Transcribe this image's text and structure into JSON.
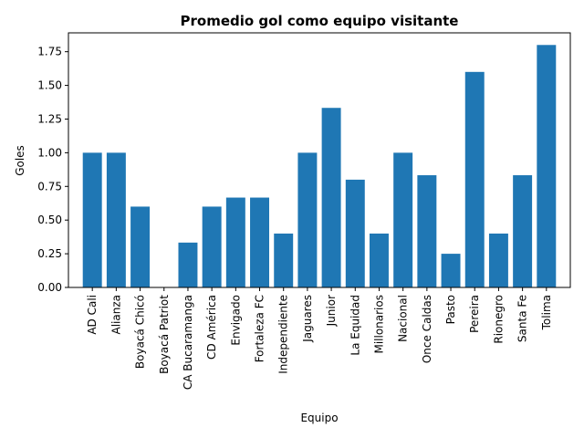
{
  "chart_data": {
    "type": "bar",
    "title": "Promedio gol como equipo visitante",
    "xlabel": "Equipo",
    "ylabel": "Goles",
    "categories": [
      "AD Cali",
      "Alianza",
      "Boyacá Chicó",
      "Boyacá Patriot",
      "CA Bucaramanga",
      "CD América",
      "Envigado",
      "Fortaleza FC",
      "Independiente",
      "Jaguares",
      "Junior",
      "La Equidad",
      "Millonarios",
      "Nacional",
      "Once Caldas",
      "Pasto",
      "Pereira",
      "Rionegro",
      "Santa Fe",
      "Tolima"
    ],
    "values": [
      1.0,
      1.0,
      0.6,
      0.0,
      0.333,
      0.6,
      0.667,
      0.667,
      0.4,
      1.0,
      1.333,
      0.8,
      0.4,
      1.0,
      0.833,
      0.25,
      1.6,
      0.4,
      0.833,
      1.8
    ],
    "ylim": [
      0,
      1.89
    ],
    "yticks": [
      "0.00",
      "0.25",
      "0.50",
      "0.75",
      "1.00",
      "1.25",
      "1.50",
      "1.75"
    ],
    "grid": false,
    "bar_color": "#1f77b4"
  }
}
